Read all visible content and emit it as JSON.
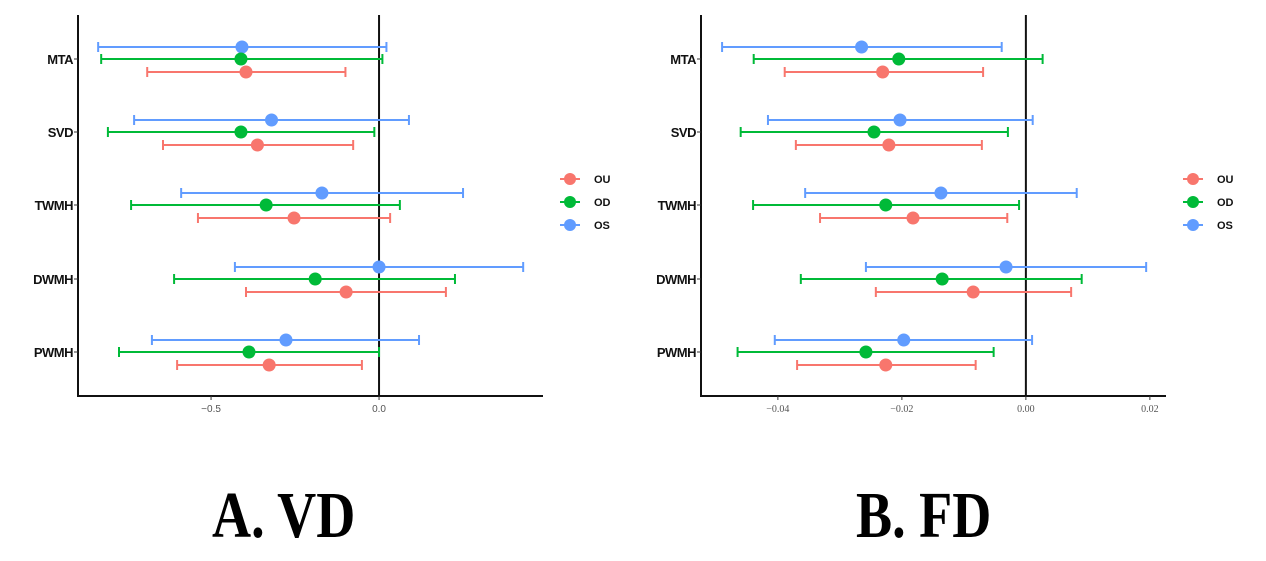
{
  "chart_data": [
    {
      "type": "forest",
      "title": "A. VD",
      "xlabel": "",
      "ylabel": "",
      "xlim": [
        -0.896,
        0.488
      ],
      "x_ticks": [
        -0.5,
        0.0
      ],
      "x_tick_labels": [
        "−0.5",
        "0.0"
      ],
      "reference_line": 0.0,
      "grid": false,
      "legend_position": "right",
      "categories": [
        "MTA",
        "SVD",
        "TWMH",
        "DWMH",
        "PWMH"
      ],
      "series": [
        {
          "name": "OU",
          "color": "#F8766D",
          "estimate": [
            -0.396,
            -0.362,
            -0.253,
            -0.098,
            -0.327
          ],
          "lower": [
            -0.69,
            -0.643,
            -0.539,
            -0.396,
            -0.601
          ],
          "upper": [
            -0.1,
            -0.077,
            0.033,
            0.199,
            -0.051
          ]
        },
        {
          "name": "OD",
          "color": "#00BA38",
          "estimate": [
            -0.411,
            -0.411,
            -0.336,
            -0.19,
            -0.387
          ],
          "lower": [
            -0.827,
            -0.807,
            -0.738,
            -0.61,
            -0.774
          ],
          "upper": [
            0.01,
            -0.014,
            0.062,
            0.226,
            0.0
          ]
        },
        {
          "name": "OS",
          "color": "#619CFF",
          "estimate": [
            -0.408,
            -0.32,
            -0.17,
            0.0,
            -0.277
          ],
          "lower": [
            -0.836,
            -0.729,
            -0.589,
            -0.429,
            -0.676
          ],
          "upper": [
            0.022,
            0.089,
            0.25,
            0.429,
            0.119
          ]
        }
      ]
    },
    {
      "type": "forest",
      "title": "B. FD",
      "xlabel": "",
      "ylabel": "",
      "xlim": [
        -0.0524,
        0.0226
      ],
      "x_ticks": [
        -0.04,
        -0.02,
        0.0,
        0.02
      ],
      "x_tick_labels": [
        "−0.04",
        "−0.02",
        "0.00",
        "0.02"
      ],
      "reference_line": 0.0,
      "grid": false,
      "legend_position": "right",
      "categories": [
        "MTA",
        "SVD",
        "TWMH",
        "DWMH",
        "PWMH"
      ],
      "series": [
        {
          "name": "OU",
          "color": "#F8766D",
          "estimate": [
            -0.0231,
            -0.0221,
            -0.0182,
            -0.0085,
            -0.0226
          ],
          "lower": [
            -0.0389,
            -0.0371,
            -0.0332,
            -0.0242,
            -0.0369
          ],
          "upper": [
            -0.0069,
            -0.0071,
            -0.003,
            0.0073,
            -0.0081
          ]
        },
        {
          "name": "OD",
          "color": "#00BA38",
          "estimate": [
            -0.0205,
            -0.0245,
            -0.0226,
            -0.0135,
            -0.0258
          ],
          "lower": [
            -0.0439,
            -0.046,
            -0.044,
            -0.0363,
            -0.0465
          ],
          "upper": [
            0.0027,
            -0.0029,
            -0.0011,
            0.009,
            -0.0052
          ]
        },
        {
          "name": "OS",
          "color": "#619CFF",
          "estimate": [
            -0.0265,
            -0.0203,
            -0.0137,
            -0.0032,
            -0.0197
          ],
          "lower": [
            -0.049,
            -0.0416,
            -0.0356,
            -0.0258,
            -0.0405
          ],
          "upper": [
            -0.0039,
            0.0011,
            0.0082,
            0.0194,
            0.001
          ]
        }
      ]
    }
  ],
  "legend": [
    "OU",
    "OD",
    "OS"
  ],
  "panel_titles": {
    "a": "A. VD",
    "b": "B. FD"
  }
}
